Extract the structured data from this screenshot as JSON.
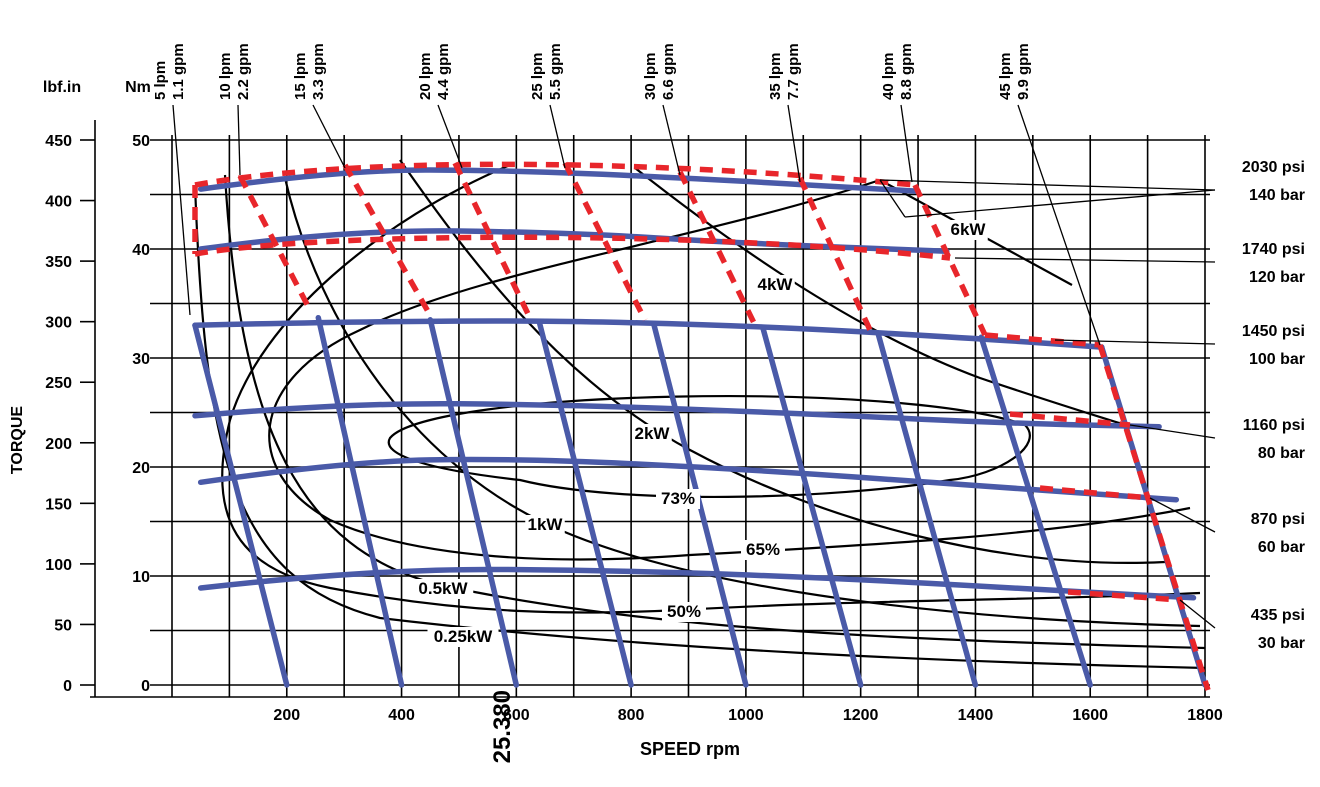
{
  "chart_data": {
    "type": "line",
    "xlabel": "SPEED rpm",
    "ylabel": "TORQUE",
    "x_ticks": [
      "200",
      "400",
      "600",
      "800",
      "1000",
      "1200",
      "1400",
      "1600",
      "1800"
    ],
    "xlim": [
      0,
      1800
    ],
    "y_axis_lbfin": {
      "unit": "lbf.in",
      "ticks": [
        "0",
        "50",
        "100",
        "150",
        "200",
        "250",
        "300",
        "350",
        "400",
        "450"
      ],
      "range": [
        0,
        450
      ]
    },
    "y_axis_nm": {
      "unit": "Nm",
      "ticks": [
        "0",
        "10",
        "20",
        "30",
        "40",
        "50"
      ],
      "range": [
        0,
        50
      ]
    },
    "grid": true,
    "stray_text": "25.380",
    "flow_lines": [
      {
        "lpm": "5 lpm",
        "gpm": "1.1 gpm",
        "points": [
          [
            40,
            33
          ],
          [
            200,
            0
          ]
        ]
      },
      {
        "lpm": "10 lpm",
        "gpm": "2.2 gpm",
        "points": [
          [
            255,
            33.7
          ],
          [
            400,
            0
          ]
        ]
      },
      {
        "lpm": "15 lpm",
        "gpm": "3.3 gpm",
        "points": [
          [
            450,
            33.5
          ],
          [
            600,
            0
          ]
        ]
      },
      {
        "lpm": "20 lpm",
        "gpm": "4.4 gpm",
        "points": [
          [
            640,
            33.3
          ],
          [
            800,
            0
          ]
        ]
      },
      {
        "lpm": "25 lpm",
        "gpm": "5.5 gpm",
        "points": [
          [
            840,
            33
          ],
          [
            1000,
            0
          ]
        ]
      },
      {
        "lpm": "30 lpm",
        "gpm": "6.6 gpm",
        "points": [
          [
            1030,
            32.7
          ],
          [
            1200,
            0
          ]
        ]
      },
      {
        "lpm": "35 lpm",
        "gpm": "7.7 gpm",
        "points": [
          [
            1230,
            32.3
          ],
          [
            1400,
            0
          ]
        ]
      },
      {
        "lpm": "40 lpm",
        "gpm": "8.8 gpm",
        "points": [
          [
            1410,
            31.9
          ],
          [
            1600,
            0
          ]
        ]
      },
      {
        "lpm": "45 lpm",
        "gpm": "9.9 gpm",
        "points": [
          [
            1620,
            31
          ],
          [
            1800,
            0
          ]
        ]
      }
    ],
    "pressure_lines": [
      {
        "psi": "2030 psi",
        "bar": "140 bar",
        "points": [
          [
            50,
            45.5
          ],
          [
            300,
            47.3
          ],
          [
            600,
            47.2
          ],
          [
            900,
            46.5
          ],
          [
            1300,
            45.3
          ]
        ]
      },
      {
        "psi": "1740 psi",
        "bar": "120 bar",
        "points": [
          [
            50,
            40
          ],
          [
            300,
            41.8
          ],
          [
            700,
            41.5
          ],
          [
            1000,
            40.5
          ],
          [
            1350,
            39.8
          ]
        ]
      },
      {
        "psi": "1450 psi",
        "bar": "100 bar",
        "points": [
          [
            40,
            33
          ],
          [
            500,
            33.6
          ],
          [
            1000,
            33
          ],
          [
            1400,
            31.8
          ],
          [
            1620,
            31
          ]
        ]
      },
      {
        "psi": "1160 psi",
        "bar": "80 bar",
        "points": [
          [
            40,
            24.7
          ],
          [
            300,
            25.9
          ],
          [
            700,
            25.7
          ],
          [
            1100,
            24.9
          ],
          [
            1460,
            24
          ],
          [
            1720,
            23.7
          ]
        ]
      },
      {
        "psi": "870 psi",
        "bar": "60 bar",
        "points": [
          [
            50,
            18.6
          ],
          [
            300,
            20.5
          ],
          [
            600,
            20.8
          ],
          [
            1000,
            19.8
          ],
          [
            1400,
            18.3
          ],
          [
            1750,
            17
          ]
        ]
      },
      {
        "psi": "435 psi",
        "bar": "30 bar",
        "points": [
          [
            50,
            8.9
          ],
          [
            350,
            10.7
          ],
          [
            800,
            10.5
          ],
          [
            1200,
            9.7
          ],
          [
            1560,
            8.6
          ],
          [
            1780,
            8
          ]
        ]
      }
    ],
    "power_labels": [
      "6kW",
      "4kW",
      "2kW",
      "1kW",
      "0.5kW",
      "0.25kW"
    ],
    "efficiency_labels": [
      "73%",
      "65%",
      "50%"
    ]
  }
}
